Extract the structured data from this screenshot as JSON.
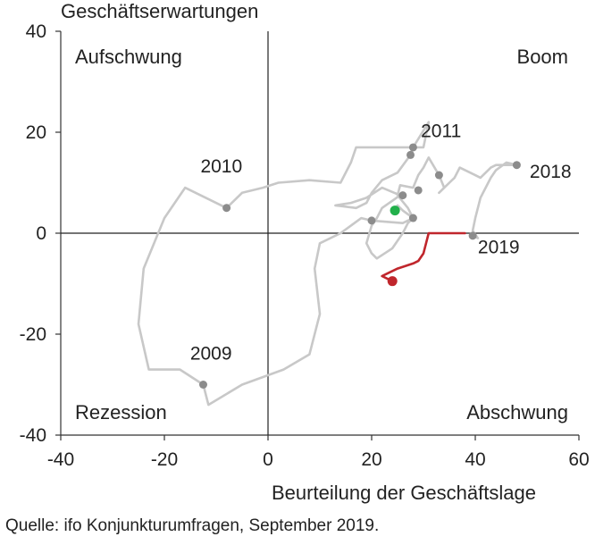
{
  "chart_data": {
    "type": "line",
    "xlabel": "Beurteilung der Geschäftslage",
    "ylabel": "Geschäftserwartungen",
    "xlim": [
      -40,
      60
    ],
    "ylim": [
      -40,
      40
    ],
    "x_ticks": [
      "-40",
      "-20",
      "0",
      "20",
      "40",
      "60"
    ],
    "y_ticks": [
      "40",
      "20",
      "0",
      "-20",
      "-40"
    ],
    "grid": false,
    "quadrants": [
      {
        "name": "Aufschwung",
        "position": "top-left"
      },
      {
        "name": "Boom",
        "position": "top-right"
      },
      {
        "name": "Rezession",
        "position": "bottom-left"
      },
      {
        "name": "Abschwung",
        "position": "bottom-right"
      }
    ],
    "series": [
      {
        "color": "#c8c8c8",
        "points": [
          [
            -12.5,
            -30
          ],
          [
            -11.5,
            -34
          ],
          [
            -5,
            -30
          ],
          [
            3,
            -27
          ],
          [
            8,
            -24
          ],
          [
            10,
            -16
          ],
          [
            9,
            -7
          ],
          [
            10,
            -2
          ],
          [
            14,
            0
          ],
          [
            18,
            3
          ],
          [
            20,
            2.5
          ],
          [
            26,
            2
          ],
          [
            28,
            3
          ],
          [
            27,
            5
          ],
          [
            25,
            7.5
          ],
          [
            25.5,
            9.5
          ],
          [
            28,
            9
          ],
          [
            29,
            11.5
          ],
          [
            30,
            13
          ],
          [
            31,
            15
          ],
          [
            33,
            11.5
          ],
          [
            34,
            9
          ],
          [
            33,
            8
          ],
          [
            35,
            10
          ],
          [
            36,
            11
          ],
          [
            37,
            13
          ],
          [
            39,
            12
          ],
          [
            41,
            11
          ],
          [
            43,
            13
          ],
          [
            44,
            13.5
          ],
          [
            48,
            13.5
          ],
          [
            46,
            14
          ],
          [
            44,
            12.5
          ],
          [
            43,
            11
          ],
          [
            42,
            9
          ],
          [
            41,
            7
          ],
          [
            40,
            3
          ],
          [
            39.5,
            0.5
          ],
          [
            40.5,
            -1
          ],
          [
            39.5,
            -0.5
          ]
        ]
      },
      {
        "color": "#c8c8c8",
        "points": [
          [
            -12.5,
            -30
          ],
          [
            -17,
            -27
          ],
          [
            -23,
            -27
          ],
          [
            -25,
            -18
          ],
          [
            -24,
            -7
          ],
          [
            -20,
            3
          ],
          [
            -16,
            9
          ],
          [
            -8,
            5
          ],
          [
            -5,
            8
          ],
          [
            -1,
            9
          ],
          [
            2,
            10
          ],
          [
            8,
            10.5
          ],
          [
            14,
            10
          ],
          [
            16,
            14
          ],
          [
            17,
            17
          ],
          [
            20,
            17
          ],
          [
            25,
            17
          ],
          [
            30,
            17
          ],
          [
            31,
            22
          ],
          [
            28,
            17
          ],
          [
            27.5,
            15.5
          ],
          [
            25,
            12
          ],
          [
            22,
            10.5
          ],
          [
            20,
            8
          ],
          [
            19,
            6
          ],
          [
            17,
            5
          ],
          [
            13,
            5.5
          ],
          [
            16,
            6
          ],
          [
            19,
            7
          ],
          [
            22,
            9
          ],
          [
            25.5,
            7.5
          ],
          [
            22,
            5
          ],
          [
            21,
            3
          ],
          [
            20,
            1.5
          ],
          [
            19,
            -2
          ],
          [
            20,
            -4
          ],
          [
            21,
            -5
          ],
          [
            24,
            -3
          ],
          [
            26,
            0
          ],
          [
            27,
            2
          ],
          [
            28,
            3
          ],
          [
            26,
            4.5
          ],
          [
            25,
            5.5
          ],
          [
            24.5,
            4.5
          ]
        ]
      },
      {
        "color": "#c0262c",
        "points": [
          [
            38,
            0
          ],
          [
            33,
            0
          ],
          [
            31,
            0
          ],
          [
            30.5,
            -2
          ],
          [
            30,
            -4
          ],
          [
            29,
            -5.5
          ],
          [
            28,
            -6
          ],
          [
            25,
            -7
          ],
          [
            23,
            -8
          ],
          [
            22,
            -8.5
          ],
          [
            24,
            -9.5
          ]
        ]
      }
    ],
    "markers": [
      {
        "x": -12.5,
        "y": -30,
        "color": "#8c8c8c"
      },
      {
        "x": -8,
        "y": 5,
        "color": "#8c8c8c"
      },
      {
        "x": 27.5,
        "y": 15.5,
        "color": "#8c8c8c"
      },
      {
        "x": 28,
        "y": 17,
        "color": "#8c8c8c"
      },
      {
        "x": 33,
        "y": 11.5,
        "color": "#8c8c8c"
      },
      {
        "x": 29,
        "y": 8.5,
        "color": "#8c8c8c"
      },
      {
        "x": 26,
        "y": 7.5,
        "color": "#8c8c8c"
      },
      {
        "x": 20,
        "y": 2.5,
        "color": "#8c8c8c"
      },
      {
        "x": 28,
        "y": 3,
        "color": "#8c8c8c"
      },
      {
        "x": 48,
        "y": 13.5,
        "color": "#8c8c8c"
      },
      {
        "x": 39.5,
        "y": -0.5,
        "color": "#8c8c8c"
      },
      {
        "x": 24.5,
        "y": 4.5,
        "color": "#22b04b"
      },
      {
        "x": 24,
        "y": -9.5,
        "color": "#c0262c"
      }
    ],
    "annotations": [
      {
        "text": "2009",
        "x": -11,
        "y": -25,
        "anchor": "middle"
      },
      {
        "text": "2010",
        "x": -9,
        "y": 12,
        "anchor": "middle"
      },
      {
        "text": "2011",
        "x": 29.5,
        "y": 19,
        "anchor": "start"
      },
      {
        "text": "2018",
        "x": 50.5,
        "y": 11,
        "anchor": "start"
      },
      {
        "text": "2019",
        "x": 40.5,
        "y": -4,
        "anchor": "start"
      }
    ]
  },
  "source": "Quelle:  ifo Konjunkturumfragen,  September  2019."
}
